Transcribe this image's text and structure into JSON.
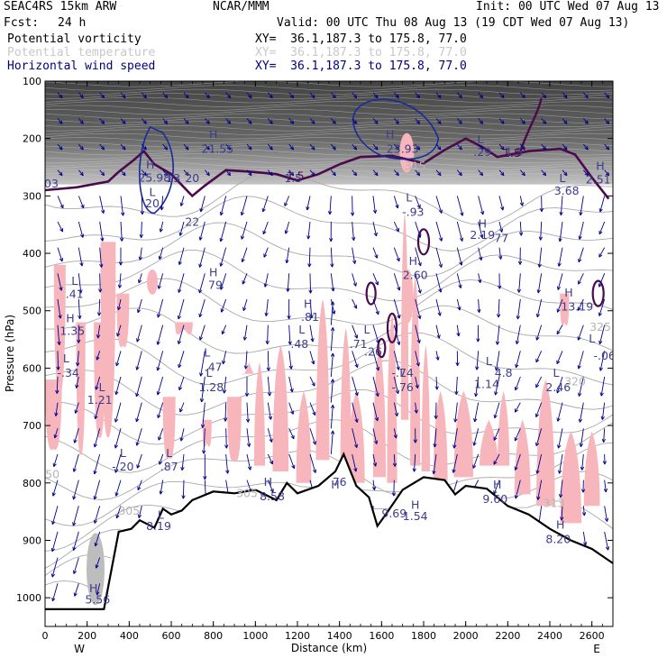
{
  "header": {
    "model": "SEAC4RS 15km ARW",
    "org": "NCAR/MMM",
    "init": "Init: 00 UTC Wed 07 Aug 13",
    "fcst_label": "Fcst:",
    "fcst_value": "24 h",
    "valid": "Valid: 00 UTC Thu 08 Aug 13 (19 CDT Wed 07 Aug 13)",
    "fields": [
      {
        "name": "Potential vorticity",
        "xy": "XY=  36.1,187.3 to 175.8, 77.0",
        "color": "#000000"
      },
      {
        "name": "Potential temperature",
        "xy": "XY=  36.1,187.3 to 175.8, 77.0",
        "color": "#c8c8c8"
      },
      {
        "name": "Horizontal wind speed",
        "xy": "XY=  36.1,187.3 to 175.8, 77.0",
        "color": "#00007f"
      }
    ]
  },
  "colors": {
    "pv_dark": "#3a3a3a",
    "pv_contour": "#4b0a4b",
    "theta": "#a9a9a9",
    "wind": "#00008b",
    "pink": "#f7b6bb",
    "terrain": "#000000"
  },
  "chart_data": {
    "type": "cross-section",
    "xlabel": "Distance (km)",
    "ylabel": "Pressure (hPa)",
    "xlim": [
      0,
      2700
    ],
    "ylim": [
      1050,
      100
    ],
    "x_ticks": [
      "0",
      "200",
      "400",
      "600",
      "800",
      "1000",
      "1200",
      "1400",
      "1600",
      "1800",
      "2000",
      "2200",
      "2400",
      "2600"
    ],
    "y_ticks": [
      "100",
      "200",
      "300",
      "400",
      "500",
      "600",
      "700",
      "800",
      "900",
      "1000"
    ],
    "x_tick_values": [
      0,
      200,
      400,
      600,
      800,
      1000,
      1200,
      1400,
      1600,
      1800,
      2000,
      2200,
      2400,
      2600
    ],
    "y_tick_values": [
      100,
      200,
      300,
      400,
      500,
      600,
      700,
      800,
      900,
      1000
    ],
    "west_label": "W",
    "east_label": "E",
    "terrain_profile": [
      [
        0,
        1020
      ],
      [
        280,
        1020
      ],
      [
        350,
        885
      ],
      [
        410,
        880
      ],
      [
        450,
        865
      ],
      [
        520,
        878
      ],
      [
        560,
        845
      ],
      [
        600,
        855
      ],
      [
        650,
        848
      ],
      [
        700,
        830
      ],
      [
        800,
        815
      ],
      [
        900,
        818
      ],
      [
        1000,
        812
      ],
      [
        1100,
        830
      ],
      [
        1150,
        800
      ],
      [
        1200,
        818
      ],
      [
        1300,
        805
      ],
      [
        1380,
        780
      ],
      [
        1420,
        750
      ],
      [
        1480,
        805
      ],
      [
        1540,
        825
      ],
      [
        1580,
        875
      ],
      [
        1620,
        855
      ],
      [
        1700,
        812
      ],
      [
        1800,
        790
      ],
      [
        1900,
        795
      ],
      [
        1950,
        820
      ],
      [
        2000,
        805
      ],
      [
        2100,
        810
      ],
      [
        2200,
        840
      ],
      [
        2300,
        855
      ],
      [
        2400,
        880
      ],
      [
        2500,
        900
      ],
      [
        2600,
        915
      ],
      [
        2700,
        940
      ]
    ],
    "extrema_labels": [
      {
        "text": "H",
        "x": 1640,
        "p": 200
      },
      {
        "text": "23.93",
        "x": 1700,
        "p": 225
      },
      {
        "text": "H",
        "x": 800,
        "p": 200
      },
      {
        "text": "21.55",
        "x": 820,
        "p": 225
      },
      {
        "text": "L",
        "x": 2070,
        "p": 208
      },
      {
        "text": ".29",
        "x": 2080,
        "p": 230
      },
      {
        "text": "1.5",
        "x": 2230,
        "p": 230
      },
      {
        "text": "H",
        "x": 2640,
        "p": 255
      },
      {
        "text": "2.51",
        "x": 2630,
        "p": 278
      },
      {
        "text": "H",
        "x": 500,
        "p": 252
      },
      {
        "text": "25.98",
        "x": 520,
        "p": 275
      },
      {
        "text": "13",
        "x": 610,
        "p": 276
      },
      {
        "text": "20",
        "x": 700,
        "p": 276
      },
      {
        "text": "L",
        "x": 510,
        "p": 300
      },
      {
        "text": "20",
        "x": 510,
        "p": 320
      },
      {
        "text": "1.5",
        "x": 1180,
        "p": 276
      },
      {
        "text": "L",
        "x": 2460,
        "p": 276
      },
      {
        "text": "3.68",
        "x": 2480,
        "p": 298
      },
      {
        "text": "03",
        "x": 30,
        "p": 285
      },
      {
        "text": "L",
        "x": 1730,
        "p": 310
      },
      {
        "text": "-.93",
        "x": 1750,
        "p": 335
      },
      {
        "text": "22",
        "x": 700,
        "p": 352
      },
      {
        "text": "H",
        "x": 2080,
        "p": 355
      },
      {
        "text": "2.19",
        "x": 2080,
        "p": 375
      },
      {
        "text": "77",
        "x": 2170,
        "p": 380
      },
      {
        "text": "H",
        "x": 1750,
        "p": 420
      },
      {
        "text": "2.60",
        "x": 1760,
        "p": 445
      },
      {
        "text": "H",
        "x": 800,
        "p": 440
      },
      {
        "text": "79",
        "x": 810,
        "p": 462
      },
      {
        "text": "L",
        "x": 140,
        "p": 455
      },
      {
        "text": ".41",
        "x": 140,
        "p": 478
      },
      {
        "text": "H",
        "x": 2490,
        "p": 475
      },
      {
        "text": "13.19",
        "x": 2530,
        "p": 500
      },
      {
        "text": "H",
        "x": 1250,
        "p": 495
      },
      {
        "text": ".81",
        "x": 1260,
        "p": 518
      },
      {
        "text": "H",
        "x": 120,
        "p": 520
      },
      {
        "text": "1.35",
        "x": 130,
        "p": 542
      },
      {
        "text": "L",
        "x": 1530,
        "p": 540
      },
      {
        "text": ".71",
        "x": 1490,
        "p": 565
      },
      {
        "text": ".26",
        "x": 1560,
        "p": 578
      },
      {
        "text": "L",
        "x": 1220,
        "p": 540
      },
      {
        "text": ".48",
        "x": 1210,
        "p": 565
      },
      {
        "text": "L",
        "x": 2600,
        "p": 555
      },
      {
        "text": "-.06",
        "x": 2660,
        "p": 585
      },
      {
        "text": "L",
        "x": 770,
        "p": 580
      },
      {
        "text": ".47",
        "x": 800,
        "p": 605
      },
      {
        "text": "L",
        "x": 780,
        "p": 615
      },
      {
        "text": "1.28",
        "x": 790,
        "p": 640
      },
      {
        "text": "L",
        "x": 100,
        "p": 590
      },
      {
        "text": "-.34",
        "x": 110,
        "p": 615
      },
      {
        "text": "L",
        "x": 1700,
        "p": 615
      },
      {
        "text": "-.74",
        "x": 1700,
        "p": 615
      },
      {
        "text": "-.76",
        "x": 1700,
        "p": 640
      },
      {
        "text": "L",
        "x": 2110,
        "p": 595
      },
      {
        "text": "4.8",
        "x": 2180,
        "p": 615
      },
      {
        "text": "L",
        "x": 2430,
        "p": 615
      },
      {
        "text": "2.46",
        "x": 2440,
        "p": 640
      },
      {
        "text": "1.14",
        "x": 2100,
        "p": 635
      },
      {
        "text": "L",
        "x": 270,
        "p": 640
      },
      {
        "text": "1.21",
        "x": 260,
        "p": 662
      },
      {
        "text": "L",
        "x": 590,
        "p": 755
      },
      {
        "text": ".87",
        "x": 590,
        "p": 778
      },
      {
        "text": "L",
        "x": 370,
        "p": 755
      },
      {
        "text": "-.20",
        "x": 370,
        "p": 778
      },
      {
        "text": "H",
        "x": 1060,
        "p": 805
      },
      {
        "text": "8.58",
        "x": 1080,
        "p": 830
      },
      {
        "text": "H",
        "x": 2150,
        "p": 810
      },
      {
        "text": "9.60",
        "x": 2140,
        "p": 835
      },
      {
        "text": "H",
        "x": 1760,
        "p": 845
      },
      {
        "text": "1.54",
        "x": 1760,
        "p": 865
      },
      {
        "text": "9.69",
        "x": 1660,
        "p": 860
      },
      {
        "text": "H",
        "x": 2450,
        "p": 880
      },
      {
        "text": "8.20",
        "x": 2440,
        "p": 905
      },
      {
        "text": "L",
        "x": 550,
        "p": 862
      },
      {
        "text": "8.19",
        "x": 540,
        "p": 882
      },
      {
        "text": "H",
        "x": 230,
        "p": 990
      },
      {
        "text": "5.56",
        "x": 250,
        "p": 1010
      },
      {
        "text": "H",
        "x": 1380,
        "p": 810
      },
      {
        "text": "76",
        "x": 1400,
        "p": 805
      }
    ],
    "theta_labels": [
      {
        "text": "325",
        "x": 2640,
        "p": 535
      },
      {
        "text": "320",
        "x": 2520,
        "p": 630
      },
      {
        "text": "315",
        "x": 1760,
        "p": 255
      },
      {
        "text": "305",
        "x": 960,
        "p": 825
      },
      {
        "text": "313",
        "x": 2420,
        "p": 842
      },
      {
        "text": "50",
        "x": 35,
        "p": 792
      },
      {
        "text": "305",
        "x": 400,
        "p": 855
      }
    ],
    "pv_contour_labels": [
      {
        "text": "1.5",
        "x": 1190,
        "p": 272
      },
      {
        "text": "1.5",
        "x": 2220,
        "p": 232
      }
    ]
  }
}
